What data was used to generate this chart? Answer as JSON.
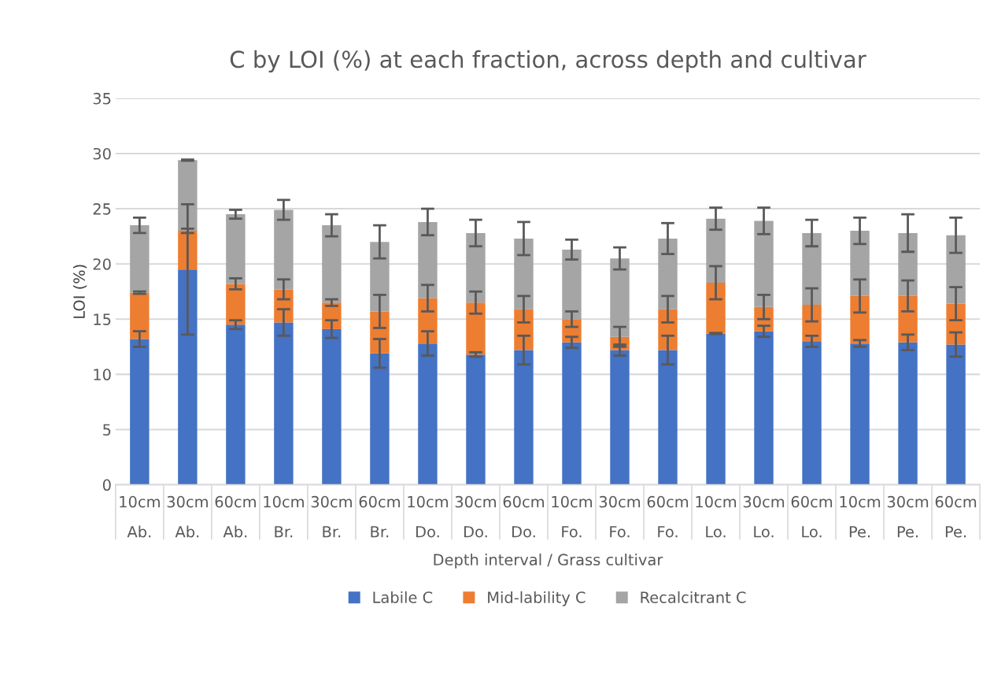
{
  "chart_data": {
    "type": "bar",
    "title": "C by LOI (%) at each fraction, across depth and cultivar",
    "xlabel": "Depth interval / Grass cultivar",
    "ylabel": "LOI (%)",
    "categories": [
      "10cm\nAb.",
      "30cm\nAb.",
      "60cm\nAb.",
      "10cm\nBr.",
      "30cm\nBr.",
      "60cm\nBr.",
      "10cm\nDo.",
      "30cm\nDo.",
      "60cm\nDo.",
      "10cm\nFo.",
      "30cm\nFo.",
      "60cm\nFo.",
      "10cm\nLo.",
      "30cm\nLo.",
      "60cm\nLo.",
      "10cm\nPe.",
      "30cm\nPe.",
      "60cm\nPe."
    ],
    "stacked": true,
    "ylim": [
      0,
      35
    ],
    "yticks": [
      0,
      5,
      10,
      15,
      20,
      25,
      30,
      35
    ],
    "grid": "y",
    "legend": "bottom",
    "series": [
      {
        "name": "Labile C",
        "color": "#4472c4",
        "values": [
          13.2,
          19.5,
          14.5,
          14.7,
          14.1,
          11.9,
          12.8,
          11.8,
          12.2,
          12.9,
          12.2,
          12.2,
          13.7,
          13.9,
          13.0,
          12.8,
          12.9,
          12.7
        ],
        "errors": [
          0.7,
          5.9,
          0.4,
          1.2,
          0.8,
          1.3,
          1.1,
          0.2,
          1.3,
          0.5,
          0.5,
          1.3,
          0.05,
          0.5,
          0.5,
          0.3,
          0.7,
          1.1
        ]
      },
      {
        "name": "Mid-lability C",
        "color": "#ed7d31",
        "values": [
          4.2,
          3.5,
          3.7,
          3.0,
          2.4,
          3.8,
          4.1,
          4.7,
          3.7,
          2.1,
          1.2,
          3.7,
          4.6,
          2.2,
          3.3,
          4.3,
          4.2,
          3.7
        ],
        "errors": [
          0.1,
          0.2,
          0.5,
          0.9,
          0.3,
          1.5,
          1.2,
          1.0,
          1.2,
          0.7,
          0.9,
          1.2,
          1.5,
          1.1,
          1.5,
          1.5,
          1.4,
          1.5
        ]
      },
      {
        "name": "Recalcitrant C",
        "color": "#a5a5a5",
        "values": [
          6.1,
          6.4,
          6.3,
          7.2,
          7.0,
          6.3,
          6.9,
          6.3,
          6.4,
          6.3,
          7.1,
          6.4,
          5.8,
          7.8,
          6.5,
          5.9,
          5.7,
          6.2
        ],
        "errors": [
          0.7,
          0.05,
          0.4,
          0.9,
          1.0,
          1.5,
          1.2,
          1.2,
          1.5,
          0.9,
          1.0,
          1.4,
          1.0,
          1.2,
          1.2,
          1.2,
          1.7,
          1.6
        ]
      }
    ]
  }
}
